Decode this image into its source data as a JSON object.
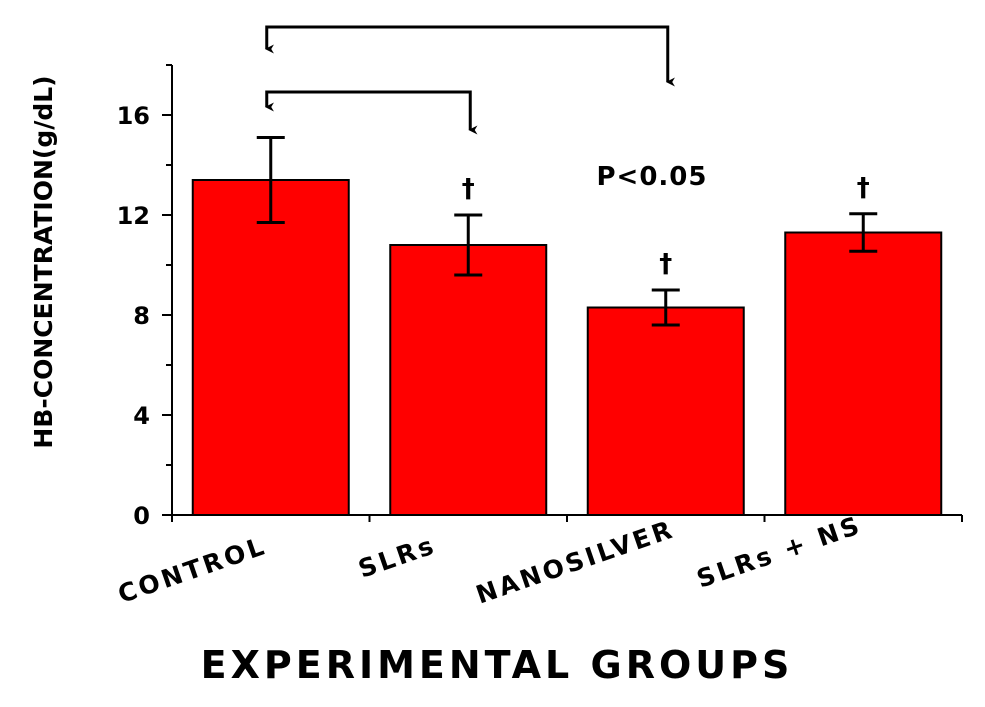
{
  "chart_data": {
    "type": "bar",
    "categories": [
      "CONTROL",
      "SLRs",
      "NANOSILVER",
      "SLRs + NS"
    ],
    "values": [
      13.4,
      10.8,
      8.3,
      11.3
    ],
    "errors": [
      1.7,
      1.2,
      0.7,
      0.75
    ],
    "xlabel": "EXPERIMENTAL GROUPS",
    "ylabel": "HB-CONCENTRATION(g/dL)",
    "ylim": [
      0,
      18
    ],
    "yticks": [
      0,
      4,
      8,
      12,
      16
    ],
    "ytick_labels": [
      "0",
      "4",
      "8",
      "12",
      "16"
    ],
    "significance_markers": [
      "",
      "†",
      "†",
      "†"
    ],
    "significance_text": "P<0.05",
    "comparisons": [
      {
        "from": "CONTROL",
        "to": "SLRs"
      },
      {
        "from": "CONTROL",
        "to": "NANOSILVER"
      }
    ],
    "bar_color": "#ff0000",
    "grid": false,
    "legend": "none"
  }
}
